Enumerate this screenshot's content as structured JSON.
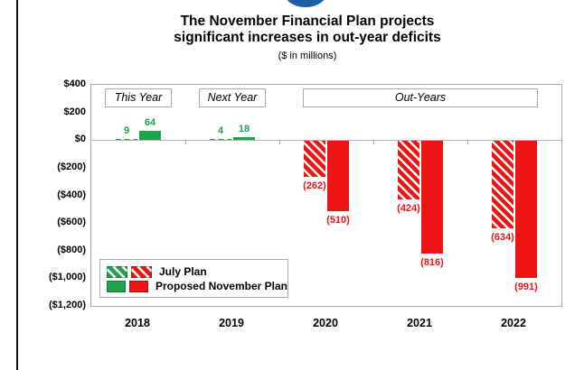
{
  "page": {
    "title_line1": "The November Financial Plan projects",
    "title_line2": "significant increases in out-year deficits",
    "subtitle": "($ in millions)"
  },
  "chart_data": {
    "type": "bar",
    "title": "The November Financial Plan projects significant increases in out-year deficits",
    "subtitle": "($ in millions)",
    "categories": [
      "2018",
      "2019",
      "2020",
      "2021",
      "2022"
    ],
    "series": [
      {
        "name": "July Plan",
        "pattern": "hatched",
        "values": [
          9,
          4,
          -262,
          -424,
          -634
        ],
        "labels": [
          "9",
          "4",
          "(262)",
          "(424)",
          "(634)"
        ]
      },
      {
        "name": "Proposed November Plan",
        "pattern": "solid",
        "values": [
          64,
          18,
          -510,
          -816,
          -991
        ],
        "labels": [
          "64",
          "18",
          "(510)",
          "(816)",
          "(991)"
        ]
      }
    ],
    "ylim": [
      400,
      -1200
    ],
    "y_ticks": [
      400,
      200,
      0,
      -200,
      -400,
      -600,
      -800,
      -1000,
      -1200
    ],
    "y_tick_labels": [
      "$400",
      "$200",
      "$0",
      "($200)",
      "($400)",
      "($600)",
      "($800)",
      "($1,000)",
      "($1,200)"
    ],
    "period_labels": [
      {
        "text": "This Year",
        "start": 0,
        "end": 0
      },
      {
        "text": "Next Year",
        "start": 1,
        "end": 1
      },
      {
        "text": "Out-Years",
        "start": 2,
        "end": 4
      }
    ],
    "legend": {
      "position": "bottom-left-inside",
      "items": [
        {
          "label": "July Plan",
          "pattern": "hatched"
        },
        {
          "label": "Proposed November Plan",
          "pattern": "solid"
        }
      ]
    },
    "colors": {
      "positive": "#1ea24c",
      "negative": "#ee1414",
      "axis_line": "#b3b3b3",
      "plot_border": "#a9a9a9",
      "logo_blue": "#1d5fa5"
    },
    "grid": false
  }
}
